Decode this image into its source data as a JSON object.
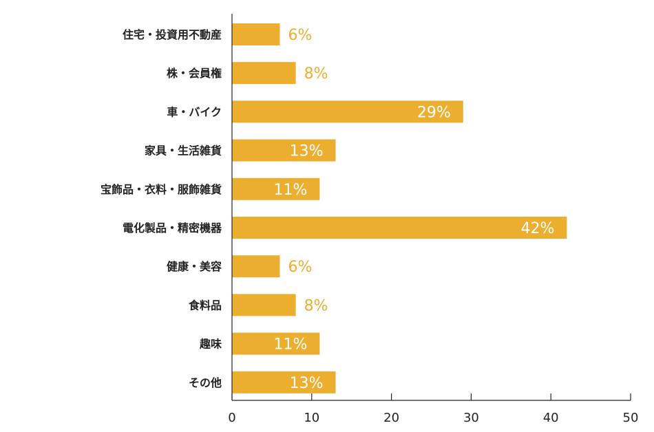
{
  "chart_data": {
    "type": "bar",
    "orientation": "horizontal",
    "categories": [
      "住宅・投資用不動産",
      "株・会員権",
      "車・バイク",
      "家具・生活雑貨",
      "宝飾品・衣料・服飾雑貨",
      "電化製品・精密機器",
      "健康・美容",
      "食料品",
      "趣味",
      "その他"
    ],
    "values": [
      6,
      8,
      29,
      13,
      11,
      42,
      6,
      8,
      11,
      13
    ],
    "value_labels": [
      "6%",
      "8%",
      "29%",
      "13%",
      "11%",
      "42%",
      "6%",
      "8%",
      "11%",
      "13%"
    ],
    "xlim": [
      0,
      50
    ],
    "xticks": [
      0,
      10,
      20,
      30,
      40,
      50
    ],
    "xtick_labels": [
      "0",
      "10",
      "20",
      "30",
      "40",
      "50"
    ],
    "grid": false,
    "bar_color": "#ECAE2E",
    "label_color_inside": "#ffffff",
    "label_color_outside": "#ECAE2E"
  }
}
